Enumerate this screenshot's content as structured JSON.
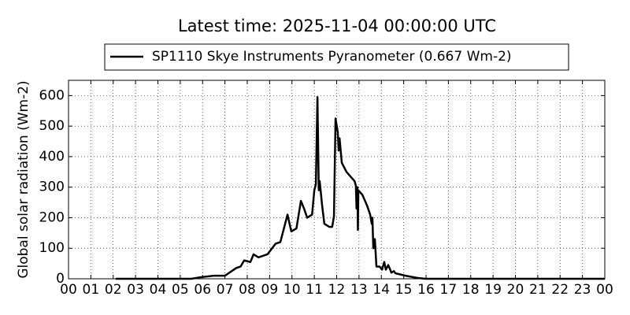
{
  "chart_data": {
    "type": "line",
    "title": "Latest time: 2025-11-04 00:00:00 UTC",
    "y_label": "Global solar radiation (Wm-2)",
    "x": [
      2.11,
      5.5,
      5.9,
      6.5,
      7.0,
      7.5,
      7.7,
      7.86,
      8.14,
      8.28,
      8.5,
      8.9,
      9.27,
      9.48,
      9.8,
      9.97,
      10.2,
      10.4,
      10.54,
      10.68,
      10.9,
      11.0,
      11.07,
      11.14,
      11.2,
      11.24,
      11.35,
      11.45,
      11.67,
      11.8,
      11.88,
      11.95,
      12.05,
      12.09,
      12.13,
      12.23,
      12.44,
      12.8,
      12.86,
      12.89,
      12.93,
      12.95,
      12.97,
      13.15,
      13.36,
      13.5,
      13.57,
      13.6,
      13.64,
      13.71,
      13.78,
      13.92,
      14.03,
      14.13,
      14.2,
      14.31,
      14.45,
      14.56,
      14.63,
      15.08,
      15.6,
      15.97,
      24.0
    ],
    "series": [
      {
        "name": "SP1110 Skye Instruments Pyranometer (0.667 Wm-2)",
        "color": "#000000",
        "values": [
          0,
          0,
          5,
          10,
          10,
          35,
          40,
          60,
          55,
          80,
          70,
          80,
          115,
          120,
          210,
          155,
          165,
          255,
          230,
          200,
          210,
          290,
          310,
          595,
          290,
          320,
          240,
          180,
          170,
          170,
          205,
          525,
          480,
          420,
          460,
          380,
          350,
          320,
          305,
          230,
          300,
          160,
          290,
          275,
          240,
          210,
          180,
          200,
          100,
          130,
          40,
          40,
          30,
          55,
          30,
          45,
          20,
          25,
          18,
          10,
          3,
          0,
          0
        ]
      }
    ],
    "xlim": [
      0,
      24
    ],
    "ylim": [
      0,
      650
    ],
    "xticks": [
      {
        "value": 0,
        "label": "00"
      },
      {
        "value": 1,
        "label": "01"
      },
      {
        "value": 2,
        "label": "02"
      },
      {
        "value": 3,
        "label": "03"
      },
      {
        "value": 4,
        "label": "04"
      },
      {
        "value": 5,
        "label": "05"
      },
      {
        "value": 6,
        "label": "06"
      },
      {
        "value": 7,
        "label": "07"
      },
      {
        "value": 8,
        "label": "08"
      },
      {
        "value": 9,
        "label": "09"
      },
      {
        "value": 10,
        "label": "10"
      },
      {
        "value": 11,
        "label": "11"
      },
      {
        "value": 12,
        "label": "12"
      },
      {
        "value": 13,
        "label": "13"
      },
      {
        "value": 14,
        "label": "14"
      },
      {
        "value": 15,
        "label": "15"
      },
      {
        "value": 16,
        "label": "16"
      },
      {
        "value": 17,
        "label": "17"
      },
      {
        "value": 18,
        "label": "18"
      },
      {
        "value": 19,
        "label": "19"
      },
      {
        "value": 20,
        "label": "20"
      },
      {
        "value": 21,
        "label": "21"
      },
      {
        "value": 22,
        "label": "22"
      },
      {
        "value": 23,
        "label": "23"
      },
      {
        "value": 24,
        "label": "00"
      }
    ],
    "yticks": [
      0,
      100,
      200,
      300,
      400,
      500,
      600
    ],
    "grid": true,
    "legend": "top"
  }
}
